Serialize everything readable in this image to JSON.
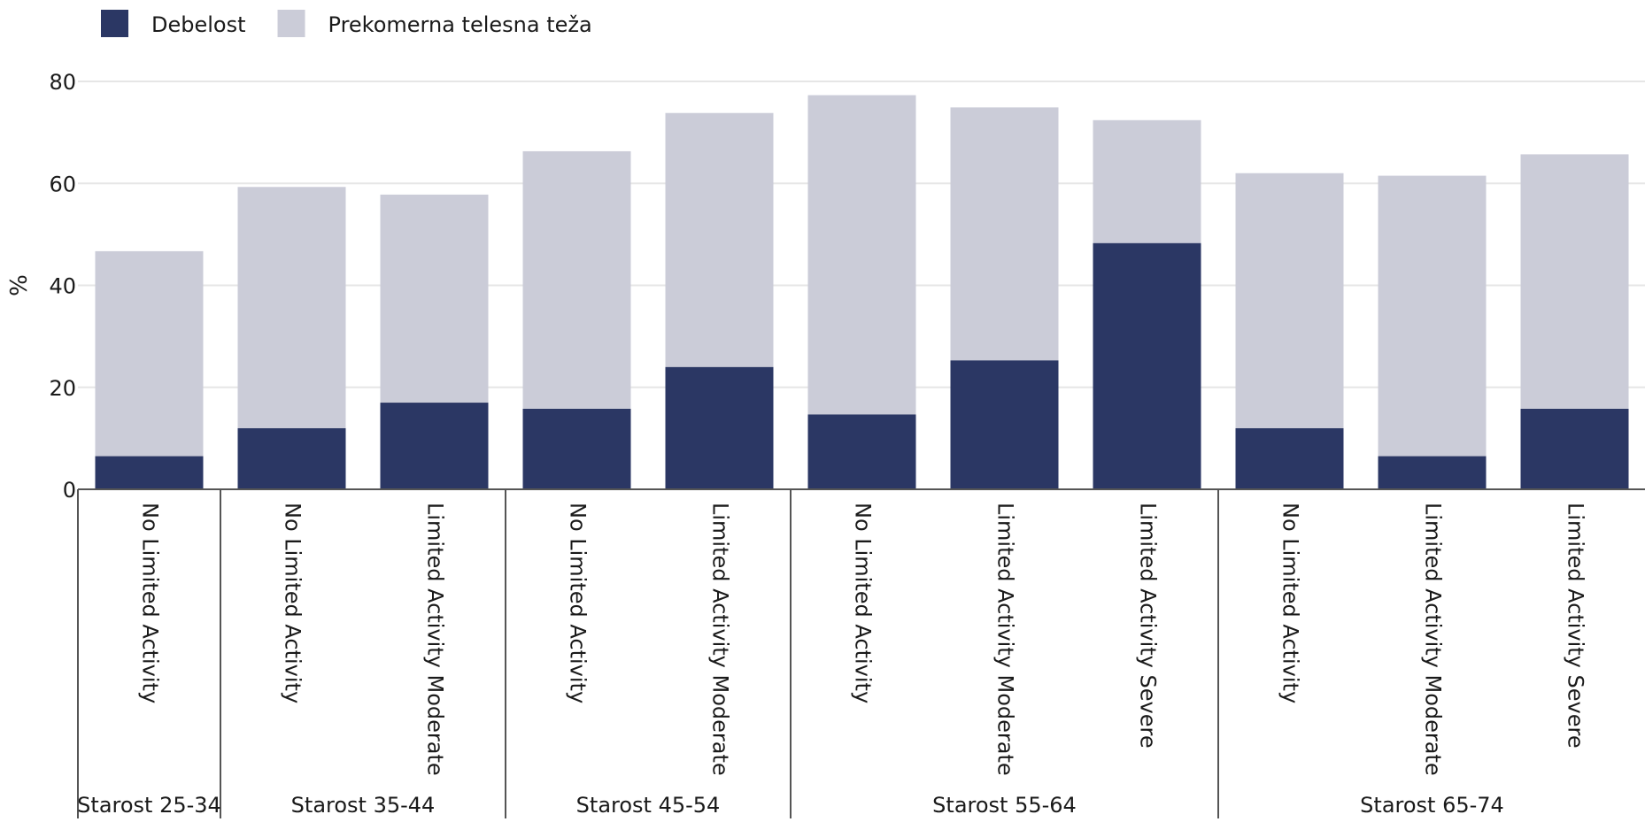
{
  "chart_data": {
    "type": "bar",
    "stacked": true,
    "ylabel": "%",
    "ylim": [
      0,
      80
    ],
    "yticks": [
      0,
      20,
      40,
      60,
      80
    ],
    "grid": true,
    "legend_position": "top-left",
    "groups": [
      {
        "label": "Starost 25-34",
        "categories": [
          "No Limited Activity"
        ]
      },
      {
        "label": "Starost 35-44",
        "categories": [
          "No Limited Activity",
          "Limited Activity Moderate"
        ]
      },
      {
        "label": "Starost 45-54",
        "categories": [
          "No Limited Activity",
          "Limited Activity Moderate"
        ]
      },
      {
        "label": "Starost 55-64",
        "categories": [
          "No Limited Activity",
          "Limited Activity Moderate",
          "Limited Activity Severe"
        ]
      },
      {
        "label": "Starost 65-74",
        "categories": [
          "No Limited Activity",
          "Limited Activity Moderate",
          "Limited Activity Severe"
        ]
      }
    ],
    "series": [
      {
        "name": "Debelost",
        "color": "#2b3764",
        "values": [
          6.5,
          12,
          17,
          15.8,
          24,
          14.7,
          25.3,
          48.3,
          12,
          6.5,
          15.8
        ]
      },
      {
        "name": "Prekomerna telesna teža",
        "color": "#cbccd8",
        "values": [
          40.2,
          47.3,
          40.8,
          50.5,
          49.8,
          62.6,
          49.6,
          24.1,
          50,
          55,
          49.9
        ]
      }
    ]
  }
}
